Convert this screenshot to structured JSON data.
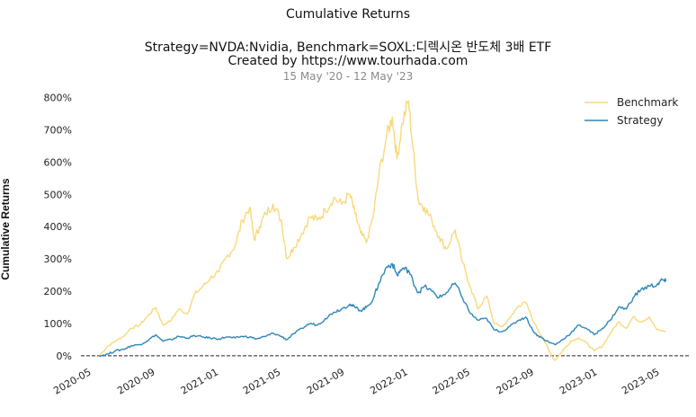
{
  "chart_data": {
    "type": "line",
    "title": "Cumulative Returns",
    "subtitle_lines": [
      "Strategy=NVDA:Nvidia, Benchmark=SOXL:디렉시온 반도체 3배 ETF",
      "Created by https://www.tourhada.com",
      "15 May '20 - 12 May '23"
    ],
    "ylabel": "Cumulative Returns",
    "xlabel": "",
    "x_ticks": [
      "2020-05",
      "2020-09",
      "2021-01",
      "2021-05",
      "2021-09",
      "2022-01",
      "2022-05",
      "2022-09",
      "2023-01",
      "2023-05"
    ],
    "y_ticks": [
      "0%",
      "100%",
      "200%",
      "300%",
      "400%",
      "500%",
      "600%",
      "700%",
      "800%"
    ],
    "ylim": [
      -20,
      810
    ],
    "xlim": [
      "2020-04-10",
      "2023-06-01"
    ],
    "grid": false,
    "legend_position": "top-right",
    "baseline": 0,
    "series": [
      {
        "name": "Benchmark",
        "color": "#f8d97a",
        "points": [
          [
            "2020-05-15",
            0
          ],
          [
            "2020-06-01",
            30
          ],
          [
            "2020-06-15",
            45
          ],
          [
            "2020-07-01",
            60
          ],
          [
            "2020-07-15",
            85
          ],
          [
            "2020-08-01",
            95
          ],
          [
            "2020-08-15",
            120
          ],
          [
            "2020-09-01",
            150
          ],
          [
            "2020-09-15",
            95
          ],
          [
            "2020-10-01",
            110
          ],
          [
            "2020-10-15",
            145
          ],
          [
            "2020-11-01",
            130
          ],
          [
            "2020-11-15",
            190
          ],
          [
            "2020-12-01",
            215
          ],
          [
            "2020-12-15",
            240
          ],
          [
            "2021-01-01",
            260
          ],
          [
            "2021-01-15",
            305
          ],
          [
            "2021-02-01",
            340
          ],
          [
            "2021-02-15",
            420
          ],
          [
            "2021-03-01",
            460
          ],
          [
            "2021-03-10",
            360
          ],
          [
            "2021-03-20",
            400
          ],
          [
            "2021-04-01",
            440
          ],
          [
            "2021-04-15",
            470
          ],
          [
            "2021-05-01",
            420
          ],
          [
            "2021-05-12",
            300
          ],
          [
            "2021-05-25",
            335
          ],
          [
            "2021-06-10",
            380
          ],
          [
            "2021-06-25",
            430
          ],
          [
            "2021-07-10",
            420
          ],
          [
            "2021-07-25",
            450
          ],
          [
            "2021-08-10",
            490
          ],
          [
            "2021-08-25",
            470
          ],
          [
            "2021-09-10",
            500
          ],
          [
            "2021-09-20",
            440
          ],
          [
            "2021-10-01",
            380
          ],
          [
            "2021-10-12",
            350
          ],
          [
            "2021-10-25",
            430
          ],
          [
            "2021-11-05",
            560
          ],
          [
            "2021-11-20",
            680
          ],
          [
            "2021-12-01",
            740
          ],
          [
            "2021-12-10",
            610
          ],
          [
            "2021-12-20",
            720
          ],
          [
            "2022-01-01",
            790
          ],
          [
            "2022-01-10",
            640
          ],
          [
            "2022-01-20",
            480
          ],
          [
            "2022-02-01",
            460
          ],
          [
            "2022-02-15",
            420
          ],
          [
            "2022-03-01",
            370
          ],
          [
            "2022-03-15",
            330
          ],
          [
            "2022-04-01",
            390
          ],
          [
            "2022-04-15",
            290
          ],
          [
            "2022-05-01",
            210
          ],
          [
            "2022-05-15",
            145
          ],
          [
            "2022-06-01",
            185
          ],
          [
            "2022-06-15",
            100
          ],
          [
            "2022-07-01",
            90
          ],
          [
            "2022-07-15",
            115
          ],
          [
            "2022-08-01",
            155
          ],
          [
            "2022-08-15",
            165
          ],
          [
            "2022-09-01",
            100
          ],
          [
            "2022-09-15",
            60
          ],
          [
            "2022-10-01",
            10
          ],
          [
            "2022-10-10",
            -15
          ],
          [
            "2022-10-25",
            15
          ],
          [
            "2022-11-10",
            45
          ],
          [
            "2022-11-25",
            55
          ],
          [
            "2022-12-10",
            40
          ],
          [
            "2022-12-25",
            15
          ],
          [
            "2023-01-10",
            30
          ],
          [
            "2023-01-25",
            70
          ],
          [
            "2023-02-10",
            105
          ],
          [
            "2023-02-25",
            85
          ],
          [
            "2023-03-10",
            120
          ],
          [
            "2023-03-25",
            105
          ],
          [
            "2023-04-10",
            120
          ],
          [
            "2023-04-25",
            80
          ],
          [
            "2023-05-12",
            75
          ]
        ]
      },
      {
        "name": "Strategy",
        "color": "#2f86b8",
        "points": [
          [
            "2020-05-15",
            0
          ],
          [
            "2020-06-01",
            5
          ],
          [
            "2020-06-15",
            15
          ],
          [
            "2020-07-01",
            20
          ],
          [
            "2020-07-15",
            30
          ],
          [
            "2020-08-01",
            35
          ],
          [
            "2020-08-15",
            45
          ],
          [
            "2020-09-01",
            65
          ],
          [
            "2020-09-15",
            45
          ],
          [
            "2020-10-01",
            50
          ],
          [
            "2020-10-15",
            60
          ],
          [
            "2020-11-01",
            55
          ],
          [
            "2020-11-15",
            62
          ],
          [
            "2020-12-01",
            58
          ],
          [
            "2020-12-15",
            55
          ],
          [
            "2021-01-01",
            52
          ],
          [
            "2021-01-15",
            58
          ],
          [
            "2021-02-01",
            55
          ],
          [
            "2021-02-15",
            60
          ],
          [
            "2021-03-01",
            58
          ],
          [
            "2021-03-15",
            52
          ],
          [
            "2021-04-01",
            60
          ],
          [
            "2021-04-15",
            70
          ],
          [
            "2021-05-01",
            60
          ],
          [
            "2021-05-12",
            50
          ],
          [
            "2021-05-25",
            68
          ],
          [
            "2021-06-10",
            85
          ],
          [
            "2021-06-25",
            100
          ],
          [
            "2021-07-10",
            95
          ],
          [
            "2021-07-25",
            115
          ],
          [
            "2021-08-10",
            135
          ],
          [
            "2021-08-25",
            145
          ],
          [
            "2021-09-10",
            160
          ],
          [
            "2021-09-20",
            150
          ],
          [
            "2021-10-01",
            140
          ],
          [
            "2021-10-12",
            150
          ],
          [
            "2021-10-25",
            175
          ],
          [
            "2021-11-05",
            225
          ],
          [
            "2021-11-20",
            275
          ],
          [
            "2021-12-01",
            285
          ],
          [
            "2021-12-10",
            250
          ],
          [
            "2021-12-20",
            270
          ],
          [
            "2022-01-01",
            265
          ],
          [
            "2022-01-10",
            230
          ],
          [
            "2022-01-20",
            195
          ],
          [
            "2022-02-01",
            215
          ],
          [
            "2022-02-15",
            200
          ],
          [
            "2022-03-01",
            180
          ],
          [
            "2022-03-15",
            195
          ],
          [
            "2022-04-01",
            225
          ],
          [
            "2022-04-15",
            180
          ],
          [
            "2022-05-01",
            130
          ],
          [
            "2022-05-15",
            110
          ],
          [
            "2022-06-01",
            115
          ],
          [
            "2022-06-15",
            80
          ],
          [
            "2022-07-01",
            75
          ],
          [
            "2022-07-15",
            90
          ],
          [
            "2022-08-01",
            110
          ],
          [
            "2022-08-15",
            120
          ],
          [
            "2022-09-01",
            70
          ],
          [
            "2022-09-15",
            55
          ],
          [
            "2022-10-01",
            40
          ],
          [
            "2022-10-12",
            35
          ],
          [
            "2022-10-25",
            50
          ],
          [
            "2022-11-10",
            70
          ],
          [
            "2022-11-25",
            95
          ],
          [
            "2022-12-10",
            85
          ],
          [
            "2022-12-25",
            65
          ],
          [
            "2023-01-10",
            85
          ],
          [
            "2023-01-25",
            110
          ],
          [
            "2023-02-10",
            150
          ],
          [
            "2023-02-25",
            145
          ],
          [
            "2023-03-10",
            180
          ],
          [
            "2023-03-25",
            205
          ],
          [
            "2023-04-10",
            215
          ],
          [
            "2023-04-25",
            220
          ],
          [
            "2023-05-05",
            235
          ],
          [
            "2023-05-12",
            230
          ]
        ]
      }
    ]
  }
}
